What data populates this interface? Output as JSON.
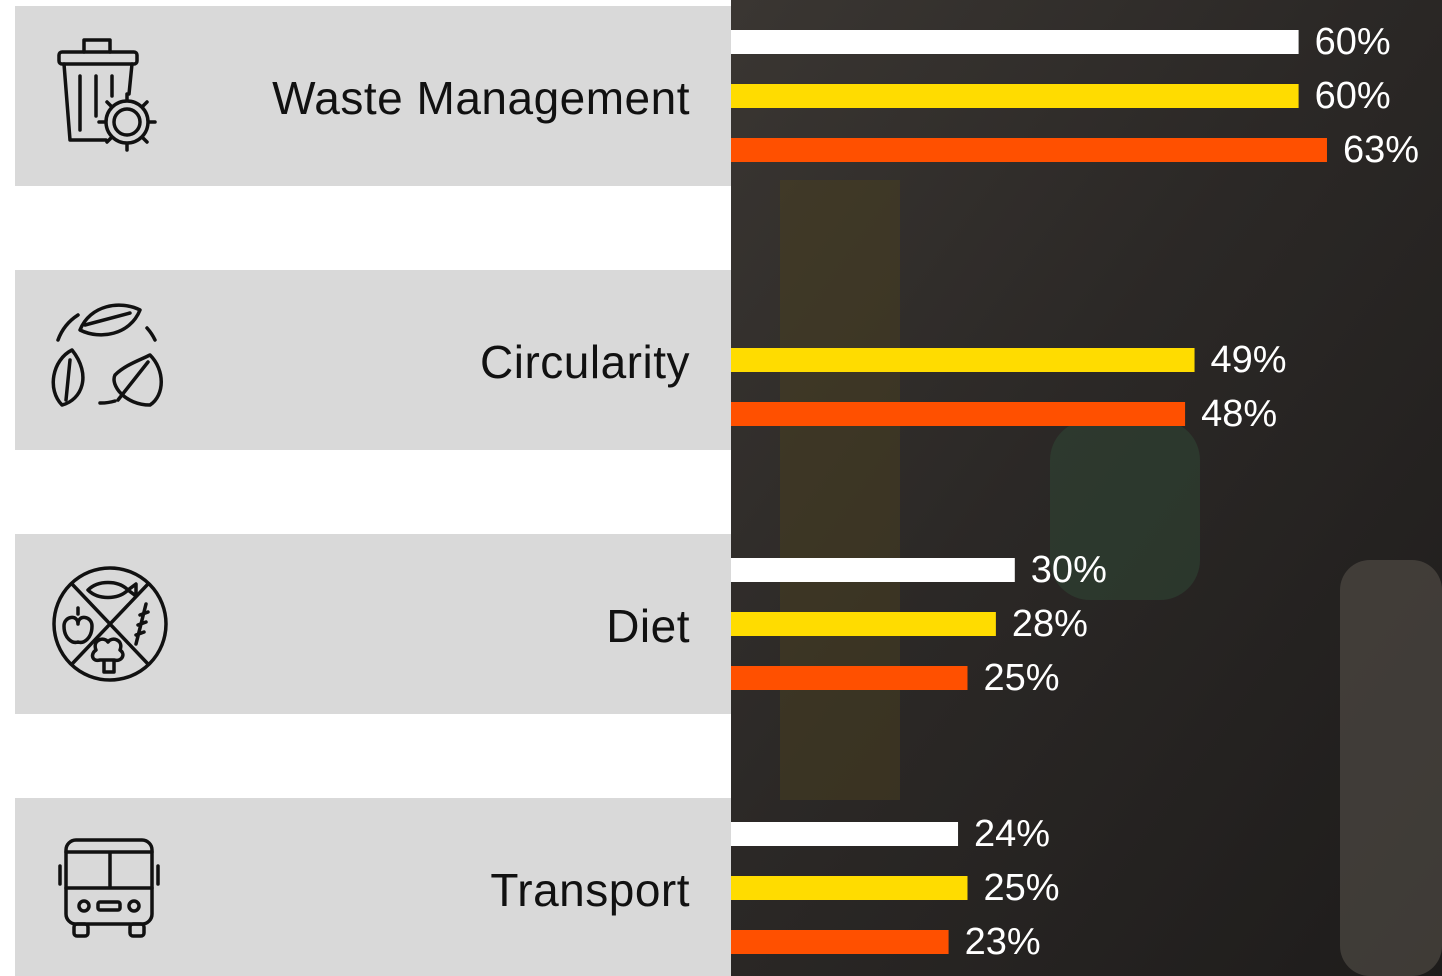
{
  "chart_data": {
    "type": "bar",
    "orientation": "horizontal",
    "categories": [
      "Waste Management",
      "Circularity",
      "Diet",
      "Transport"
    ],
    "series": [
      {
        "color": "#ffffff",
        "values": [
          60,
          null,
          30,
          24
        ],
        "value_labels": [
          "60%",
          null,
          "30%",
          "24%"
        ]
      },
      {
        "color": "#ffdc00",
        "values": [
          60,
          49,
          28,
          25
        ],
        "value_labels": [
          "60%",
          "49%",
          "28%",
          "25%"
        ]
      },
      {
        "color": "#ff5000",
        "values": [
          63,
          48,
          25,
          23
        ],
        "value_labels": [
          "63%",
          "48%",
          "25%",
          "23%"
        ]
      }
    ]
  }
}
